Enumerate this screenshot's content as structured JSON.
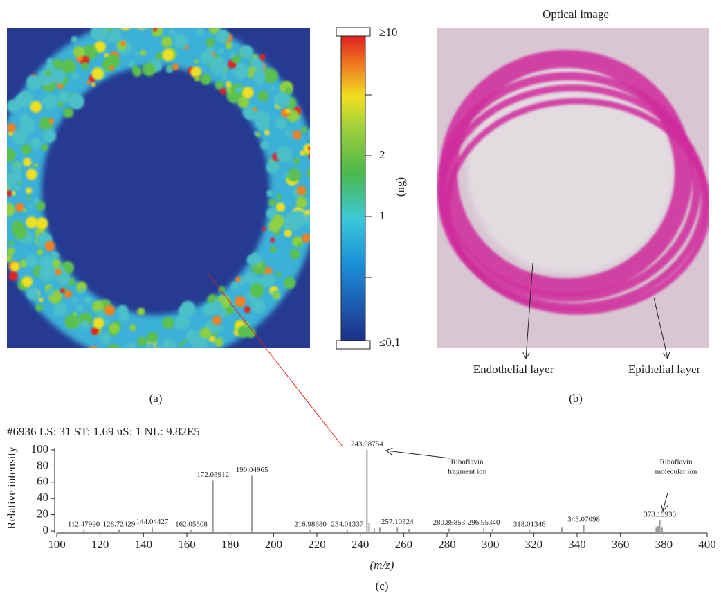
{
  "chart_data": {
    "type": "stem",
    "subtitle": "#6936 LS: 31 ST: 1.69 uS: 1 NL: 9.82E5",
    "x_label": "(m/z)",
    "y_label": "Relative intensity",
    "panel_label": "(c)",
    "color": "#999999",
    "x": [
      112.4799,
      128.72429,
      144.04427,
      162.05508,
      172.03912,
      190.04965,
      216.9868,
      234.01337,
      243.08754,
      244.1,
      246.5,
      249.0,
      257.10324,
      262.5,
      280.89853,
      296.9534,
      301.0,
      318.01346,
      333.0,
      343.07098,
      376.5,
      377.3,
      378.1593,
      379.2
    ],
    "x_labels": [
      "112.47990",
      "128.72429",
      "144.04427",
      "162.05508",
      "172.03912",
      "190.04965",
      "216.98680",
      "234.01337",
      "243.08754",
      null,
      null,
      null,
      "257.10324",
      null,
      "280.89853",
      "296.95340",
      null,
      "318.01346",
      null,
      "343.07098",
      null,
      null,
      "378.15930",
      null
    ],
    "values": [
      1,
      1,
      4,
      1,
      62,
      68,
      1,
      1,
      100,
      10,
      3,
      4,
      4,
      2,
      3,
      3,
      2,
      1,
      4,
      7,
      4,
      6,
      13,
      4
    ],
    "xlim": [
      100,
      400
    ],
    "ylim": [
      0,
      100
    ],
    "xticks": [
      100,
      120,
      140,
      160,
      180,
      200,
      220,
      240,
      260,
      280,
      300,
      320,
      340,
      360,
      380,
      400
    ],
    "yticks": [
      0,
      20,
      40,
      60,
      80,
      100
    ],
    "annotations": [
      [
        "Riboflavin",
        "fragment ion"
      ],
      [
        "Riboflavin",
        "molecular ion"
      ]
    ]
  },
  "panel_a": {
    "colorbar_labels": [
      "≥10",
      "2",
      "1",
      "≤0,1"
    ],
    "unit": "(ng)",
    "panel_label": "(a)"
  },
  "panel_b": {
    "title": "Optical image",
    "labels": [
      "Endothelial layer",
      "Epithelial layer"
    ],
    "panel_label": "(b)"
  }
}
